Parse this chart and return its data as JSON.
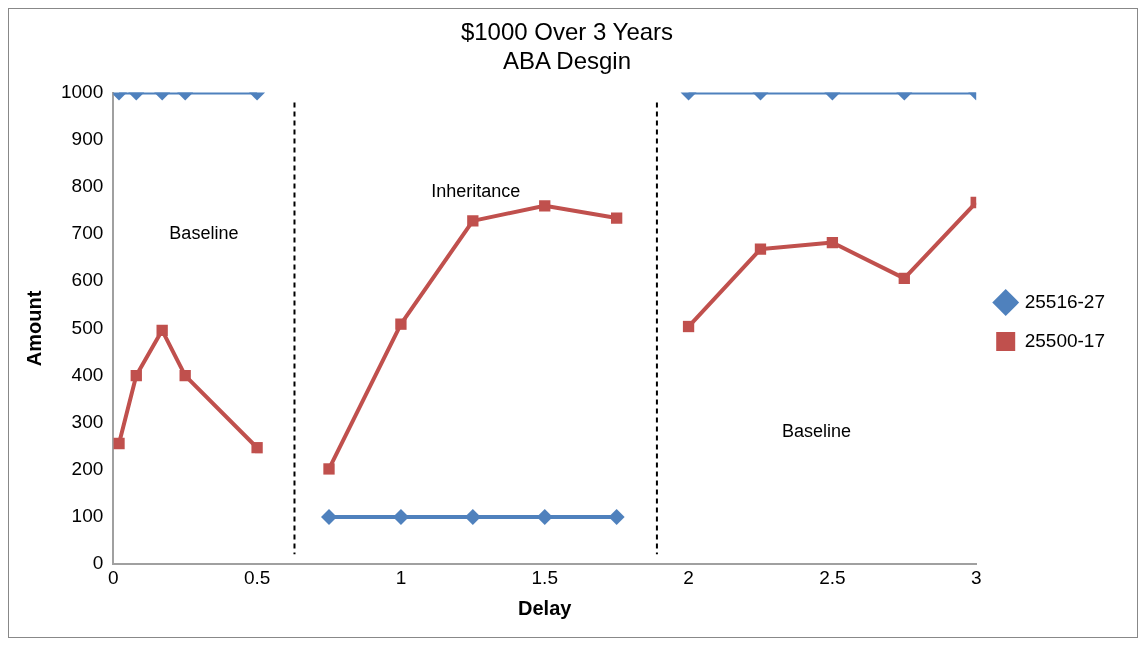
{
  "chart_data": {
    "type": "line",
    "title": "$1000 Over 3 Years\nABA Desgin",
    "xlabel": "Delay",
    "ylabel": "Amount",
    "xlim": [
      0,
      3
    ],
    "xticks": [
      0,
      0.5,
      1,
      1.5,
      2,
      2.5,
      3
    ],
    "ylim": [
      0,
      1000
    ],
    "yticks": [
      0,
      100,
      200,
      300,
      400,
      500,
      600,
      700,
      800,
      900,
      1000
    ],
    "grid": false,
    "legend": "right",
    "series": [
      {
        "name": "25516-27",
        "color": "#4f81bd",
        "marker": "diamond",
        "x": [
          0.02,
          0.08,
          0.17,
          0.25,
          0.5,
          null,
          0.75,
          1,
          1.25,
          1.5,
          1.75,
          null,
          2,
          2.25,
          2.5,
          2.75,
          3
        ],
        "values": [
          1000,
          1000,
          1000,
          1000,
          1000,
          null,
          100,
          100,
          100,
          100,
          100,
          null,
          1000,
          1000,
          1000,
          1000,
          1000
        ]
      },
      {
        "name": "25500-17",
        "color": "#c0504d",
        "marker": "square",
        "x": [
          0.02,
          0.08,
          0.17,
          0.25,
          0.5,
          null,
          0.75,
          1,
          1.25,
          1.5,
          1.75,
          null,
          2,
          2.25,
          2.5,
          2.75,
          3
        ],
        "values": [
          256,
          400,
          496,
          400,
          247,
          null,
          202,
          509,
          728,
          760,
          734,
          null,
          504,
          668,
          682,
          606,
          767
        ]
      }
    ],
    "ref_lines": [
      {
        "axis": "x",
        "value": 0.63,
        "color": "#000000",
        "line_style": "dashed"
      },
      {
        "axis": "x",
        "value": 1.89,
        "color": "#000000",
        "line_style": "dashed"
      }
    ],
    "annotations": [
      "Baseline",
      "Inheritance",
      "Baseline"
    ]
  }
}
